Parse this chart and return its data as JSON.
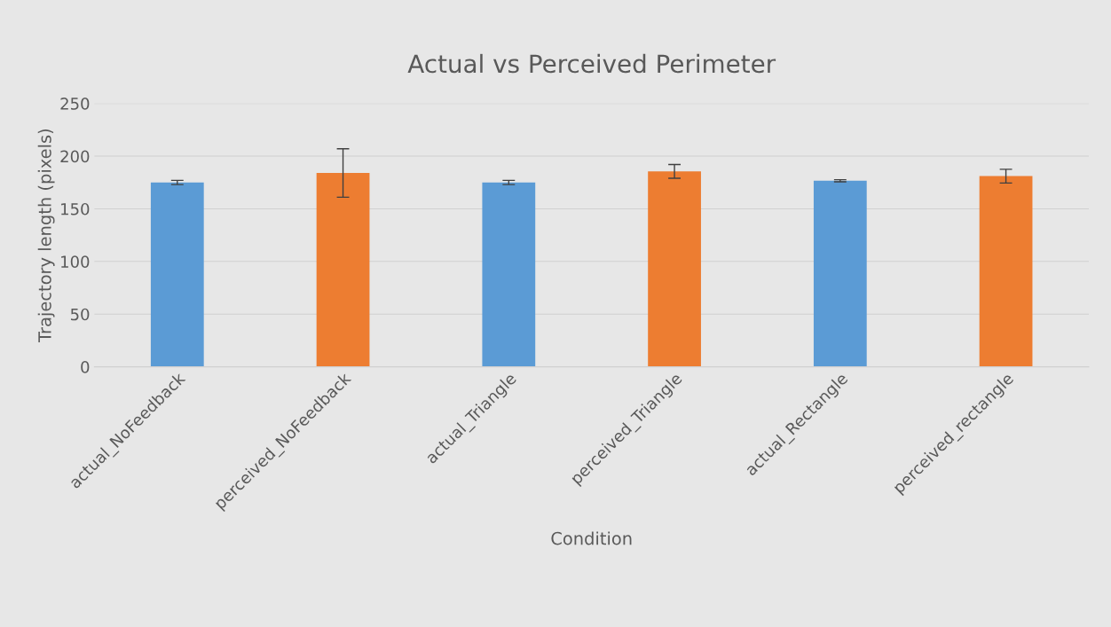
{
  "chart_data": {
    "type": "bar",
    "title": "Actual vs Perceived Perimeter",
    "xlabel": "Condition",
    "ylabel": "Trajectory length (pixels)",
    "categories": [
      "actual_NoFeedback",
      "perceived_NoFeedback",
      "actual_Triangle",
      "perceived_Triangle",
      "actual_Rectangle",
      "perceived_rectangle"
    ],
    "values": [
      175,
      184,
      175,
      185.5,
      176.6,
      181
    ],
    "errors": [
      2,
      23,
      2,
      6.5,
      1,
      6.5
    ],
    "colors": [
      "#5b9bd5",
      "#ed7d31",
      "#5b9bd5",
      "#ed7d31",
      "#5b9bd5",
      "#ed7d31"
    ],
    "ylim": [
      0,
      250
    ],
    "yticks": [
      0,
      50,
      100,
      150,
      200,
      250
    ],
    "grid": "y"
  }
}
